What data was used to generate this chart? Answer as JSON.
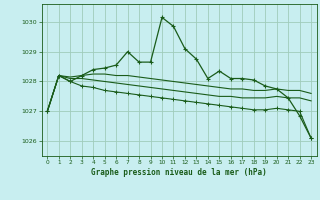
{
  "title": "Graphe pression niveau de la mer (hPa)",
  "bg_color": "#c8eef0",
  "grid_color": "#a0ccbb",
  "line_color": "#1a5c1a",
  "xlim": [
    -0.5,
    23.5
  ],
  "ylim": [
    1025.5,
    1030.6
  ],
  "yticks": [
    1026,
    1027,
    1028,
    1029,
    1030
  ],
  "xticks": [
    0,
    1,
    2,
    3,
    4,
    5,
    6,
    7,
    8,
    9,
    10,
    11,
    12,
    13,
    14,
    15,
    16,
    17,
    18,
    19,
    20,
    21,
    22,
    23
  ],
  "series": [
    [
      1027.0,
      1028.2,
      1028.0,
      1028.2,
      1028.4,
      1028.45,
      1028.55,
      1029.0,
      1028.65,
      1028.65,
      1030.15,
      1029.85,
      1029.1,
      1028.75,
      1028.1,
      1028.35,
      1028.1,
      1028.1,
      1028.05,
      1027.85,
      1027.75,
      1027.45,
      1026.85,
      1026.1
    ],
    [
      1027.0,
      1028.2,
      1028.15,
      1028.2,
      1028.25,
      1028.25,
      1028.2,
      1028.2,
      1028.15,
      1028.1,
      1028.05,
      1028.0,
      1027.95,
      1027.9,
      1027.85,
      1027.8,
      1027.75,
      1027.75,
      1027.7,
      1027.7,
      1027.75,
      1027.7,
      1027.7,
      1027.6
    ],
    [
      1027.0,
      1028.2,
      1028.1,
      1028.1,
      1028.05,
      1028.0,
      1027.95,
      1027.9,
      1027.85,
      1027.8,
      1027.75,
      1027.7,
      1027.65,
      1027.6,
      1027.55,
      1027.5,
      1027.5,
      1027.45,
      1027.45,
      1027.45,
      1027.5,
      1027.45,
      1027.45,
      1027.35
    ],
    [
      1027.0,
      1028.2,
      1028.0,
      1027.85,
      1027.8,
      1027.7,
      1027.65,
      1027.6,
      1027.55,
      1027.5,
      1027.45,
      1027.4,
      1027.35,
      1027.3,
      1027.25,
      1027.2,
      1027.15,
      1027.1,
      1027.05,
      1027.05,
      1027.1,
      1027.05,
      1027.0,
      1026.1
    ]
  ]
}
